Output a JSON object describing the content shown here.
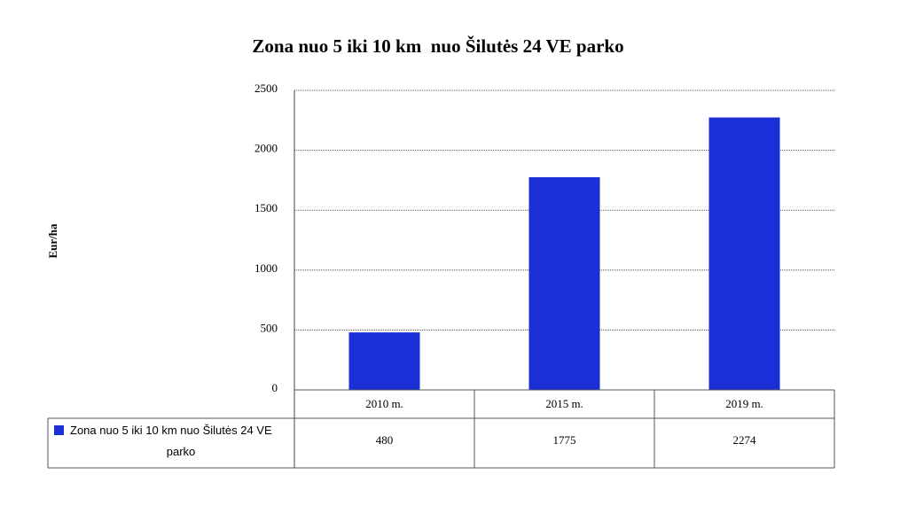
{
  "chart_data": {
    "type": "bar",
    "title": "Zona nuo 5 iki 10 km  nuo Šilutės 24 VE parko",
    "ylabel": "Eur/ha",
    "xlabel": "",
    "categories": [
      "2010 m.",
      "2015 m.",
      "2019 m."
    ],
    "series": [
      {
        "name": "Zona nuo 5 iki 10 km  nuo Šilutės 24 VE parko",
        "name_lines": [
          "Zona nuo 5 iki 10 km  nuo Šilutės 24 VE",
          "parko"
        ],
        "values": [
          480,
          1775,
          2274
        ],
        "value_labels": [
          "480",
          "1775",
          "2274"
        ],
        "color": "#1a2fd6"
      }
    ],
    "ylim": [
      0,
      2500
    ],
    "yticks": [
      0,
      500,
      1000,
      1500,
      2000,
      2500
    ],
    "ytick_labels": [
      "0",
      "500",
      "1000",
      "1500",
      "2000",
      "2500"
    ],
    "grid": true,
    "legend": "data-table"
  }
}
